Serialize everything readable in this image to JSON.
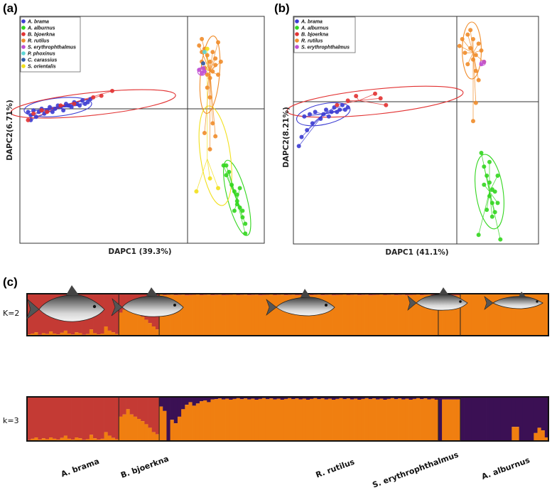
{
  "figure": {
    "panel_labels": [
      "(a)",
      "(b)",
      "(c)"
    ],
    "colors": {
      "A. brama": "#3c3cd2",
      "A. alburnus": "#33d61f",
      "B. bjoerkna": "#e23232",
      "R. rutilus": "#f08c2a",
      "S. erythrophthalmus": "#c04fd3",
      "P. phoxinus": "#5fd6d6",
      "C. carassius": "#2e5aa8",
      "S. orientalis": "#f2e01c",
      "k_dark_red": "#c43a34",
      "k_orange": "#f07f10",
      "k_purple": "#3b1054"
    }
  },
  "chart_data": [
    {
      "panel": "(a)",
      "type": "scatter",
      "xlabel": "DAPC1 (39.3%)",
      "ylabel": "DAPC2(6.71%)",
      "xlim": [
        -5,
        4
      ],
      "ylim": [
        -4,
        3
      ],
      "legend": [
        "A. brama",
        "A. alburnus",
        "B. bjoerkna",
        "R. rutilus",
        "S. erythrophthalmus",
        "P. phoxinus",
        "C. carassius",
        "S. orientalis"
      ],
      "series": [
        {
          "name": "A. brama",
          "points": [
            [
              -4.7,
              0.05
            ],
            [
              -4.6,
              -0.05
            ],
            [
              -4.5,
              0.1
            ],
            [
              -4.4,
              -0.1
            ],
            [
              -4.3,
              0.05
            ],
            [
              -4.2,
              0.15
            ],
            [
              -4.1,
              0.0
            ],
            [
              -4.0,
              0.1
            ],
            [
              -3.9,
              0.2
            ],
            [
              -3.8,
              0.05
            ],
            [
              -3.7,
              0.15
            ],
            [
              -3.6,
              0.25
            ],
            [
              -3.5,
              0.2
            ],
            [
              -3.4,
              0.1
            ],
            [
              -3.3,
              0.3
            ],
            [
              -3.2,
              0.25
            ],
            [
              -3.1,
              0.2
            ],
            [
              -3.0,
              0.35
            ],
            [
              -2.9,
              0.3
            ],
            [
              -2.8,
              0.25
            ],
            [
              -2.7,
              0.4
            ],
            [
              -2.6,
              0.3
            ],
            [
              -2.5,
              0.35
            ],
            [
              -2.4,
              0.45
            ],
            [
              -4.6,
              -0.2
            ]
          ],
          "centroid": [
            -3.5,
            0.2
          ]
        },
        {
          "name": "B. bjoerkna",
          "points": [
            [
              -4.7,
              -0.2
            ],
            [
              -4.5,
              0.0
            ],
            [
              -4.0,
              0.05
            ],
            [
              -3.5,
              0.25
            ],
            [
              -3.0,
              0.3
            ],
            [
              -2.0,
              0.55
            ],
            [
              -1.6,
              0.7
            ],
            [
              -2.3,
              0.5
            ],
            [
              -4.2,
              0.1
            ]
          ],
          "centroid": [
            -3.2,
            0.3
          ]
        },
        {
          "name": "R. rutilus",
          "points": [
            [
              1.6,
              2.1
            ],
            [
              1.7,
              1.9
            ],
            [
              1.8,
              2.0
            ],
            [
              1.9,
              1.8
            ],
            [
              2.0,
              1.6
            ],
            [
              2.1,
              1.9
            ],
            [
              2.2,
              1.7
            ],
            [
              2.3,
              2.2
            ],
            [
              1.8,
              1.4
            ],
            [
              1.9,
              1.2
            ],
            [
              2.0,
              1.1
            ],
            [
              2.1,
              1.3
            ],
            [
              2.2,
              1.5
            ],
            [
              1.7,
              1.6
            ],
            [
              2.3,
              1.2
            ],
            [
              1.9,
              0.8
            ],
            [
              2.0,
              0.5
            ],
            [
              1.8,
              -0.6
            ],
            [
              2.0,
              -1.1
            ],
            [
              2.2,
              -0.7
            ],
            [
              2.1,
              -0.3
            ],
            [
              1.7,
              2.3
            ],
            [
              2.4,
              1.6
            ]
          ],
          "centroid": [
            2.0,
            1.3
          ]
        },
        {
          "name": "A. alburnus",
          "points": [
            [
              2.5,
              -1.6
            ],
            [
              2.6,
              -1.9
            ],
            [
              2.7,
              -1.8
            ],
            [
              2.8,
              -2.2
            ],
            [
              2.9,
              -2.4
            ],
            [
              3.0,
              -2.5
            ],
            [
              3.0,
              -2.7
            ],
            [
              3.1,
              -2.9
            ],
            [
              3.2,
              -3.0
            ],
            [
              3.2,
              -3.2
            ],
            [
              3.3,
              -3.4
            ],
            [
              2.9,
              -3.0
            ],
            [
              3.1,
              -2.3
            ],
            [
              2.6,
              -1.6
            ],
            [
              3.3,
              -3.7
            ],
            [
              3.0,
              -2.8
            ]
          ],
          "centroid": [
            3.0,
            -2.7
          ]
        },
        {
          "name": "S. erythrophthalmus",
          "points": [
            [
              1.6,
              1.35
            ],
            [
              1.7,
              1.25
            ],
            [
              1.8,
              1.3
            ],
            [
              1.75,
              1.4
            ]
          ],
          "centroid": [
            1.7,
            1.3
          ]
        },
        {
          "name": "S. orientalis",
          "points": [
            [
              1.9,
              2.0
            ],
            [
              2.0,
              -2.0
            ],
            [
              1.5,
              -2.4
            ],
            [
              2.3,
              -2.3
            ]
          ],
          "centroid": [
            1.9,
            -1.4
          ]
        },
        {
          "name": "P. phoxinus",
          "points": [
            [
              1.8,
              1.9
            ]
          ],
          "centroid": [
            1.8,
            1.9
          ]
        },
        {
          "name": "C. carassius",
          "points": [
            [
              1.75,
              1.55
            ]
          ],
          "centroid": [
            1.75,
            1.55
          ]
        }
      ]
    },
    {
      "panel": "(b)",
      "type": "scatter",
      "xlabel": "DAPC1 (41.1%)",
      "ylabel": "DAPC2(8.21%)",
      "xlim": [
        -5,
        4
      ],
      "ylim": [
        -6,
        4
      ],
      "legend": [
        "A. brama",
        "A. alburnus",
        "B. bjoerkna",
        "R. rutilus",
        "S. erythrophthalmus"
      ],
      "series": [
        {
          "name": "A. brama",
          "points": [
            [
              -4.6,
              -0.4
            ],
            [
              -4.4,
              -0.3
            ],
            [
              -4.2,
              -0.2
            ],
            [
              -4.0,
              -0.5
            ],
            [
              -3.9,
              -0.3
            ],
            [
              -3.8,
              -0.1
            ],
            [
              -3.7,
              -0.4
            ],
            [
              -3.6,
              -0.2
            ],
            [
              -3.5,
              0.0
            ],
            [
              -3.4,
              -0.2
            ],
            [
              -3.3,
              -0.1
            ],
            [
              -3.2,
              0.1
            ],
            [
              -3.1,
              -0.1
            ],
            [
              -3.0,
              0.0
            ],
            [
              -4.7,
              -1.3
            ],
            [
              -4.5,
              -1.0
            ],
            [
              -4.3,
              -0.7
            ],
            [
              -4.8,
              -1.7
            ]
          ],
          "centroid": [
            -3.9,
            -0.3
          ]
        },
        {
          "name": "B. bjoerkna",
          "points": [
            [
              -3.0,
              0.3
            ],
            [
              -2.7,
              0.5
            ],
            [
              -1.8,
              0.4
            ],
            [
              -1.6,
              0.1
            ],
            [
              -2.0,
              0.6
            ],
            [
              -3.4,
              0.1
            ]
          ],
          "centroid": [
            -2.6,
            0.3
          ]
        },
        {
          "name": "R. rutilus",
          "points": [
            [
              1.2,
              3.0
            ],
            [
              1.4,
              3.2
            ],
            [
              1.6,
              3.0
            ],
            [
              1.8,
              2.8
            ],
            [
              1.5,
              2.6
            ],
            [
              1.3,
              2.4
            ],
            [
              1.7,
              2.3
            ],
            [
              1.9,
              2.5
            ],
            [
              1.6,
              2.1
            ],
            [
              1.4,
              1.9
            ],
            [
              1.7,
              1.6
            ],
            [
              1.8,
              1.2
            ],
            [
              1.5,
              3.4
            ],
            [
              2.0,
              2.0
            ],
            [
              1.1,
              2.7
            ],
            [
              1.7,
              0.2
            ],
            [
              1.6,
              -0.6
            ]
          ],
          "centroid": [
            1.6,
            2.4
          ]
        },
        {
          "name": "A. alburnus",
          "points": [
            [
              1.9,
              -2.0
            ],
            [
              2.0,
              -2.6
            ],
            [
              2.1,
              -3.0
            ],
            [
              2.2,
              -3.3
            ],
            [
              2.3,
              -3.6
            ],
            [
              2.2,
              -3.9
            ],
            [
              2.3,
              -4.2
            ],
            [
              2.4,
              -3.7
            ],
            [
              2.1,
              -4.5
            ],
            [
              2.5,
              -4.2
            ],
            [
              2.3,
              -4.8
            ],
            [
              2.0,
              -3.4
            ],
            [
              2.5,
              -3.0
            ],
            [
              2.2,
              -2.4
            ],
            [
              1.8,
              -5.6
            ],
            [
              2.6,
              -5.8
            ],
            [
              2.4,
              -4.6
            ]
          ],
          "centroid": [
            2.2,
            -3.7
          ]
        },
        {
          "name": "S. erythrophthalmus",
          "points": [
            [
              1.9,
              1.9
            ],
            [
              2.0,
              2.0
            ]
          ],
          "centroid": [
            1.95,
            1.95
          ]
        }
      ]
    },
    {
      "panel": "(c)",
      "type": "bar",
      "stacked": true,
      "rows": [
        {
          "label": "K=2",
          "clusters": [
            "k_dark_red",
            "k_orange"
          ]
        },
        {
          "label": "k=3",
          "clusters": [
            "k_dark_red",
            "k_orange",
            "k_purple"
          ]
        }
      ],
      "groups": [
        "A. brama",
        "B. bjoerkna",
        "R. rutilus",
        "S. erythrophthalmus",
        "A. alburnus"
      ],
      "group_sizes": [
        25,
        11,
        76,
        6,
        24
      ],
      "k2_minor_fraction": {
        "A. brama": [
          0.03,
          0.05,
          0.08,
          0.02,
          0.06,
          0.04,
          0.1,
          0.05,
          0.03,
          0.07,
          0.12,
          0.05,
          0.03,
          0.08,
          0.06,
          0.02,
          0.04,
          0.15,
          0.06,
          0.03,
          0.05,
          0.22,
          0.12,
          0.08,
          0.04
        ],
        "B. bjoerkna": [
          0.55,
          0.62,
          0.72,
          0.66,
          0.58,
          0.5,
          0.45,
          0.38,
          0.3,
          0.22,
          0.15
        ],
        "R. rutilus_dark_top": 0.03,
        "S. erythrophthalmus_dark_top": 0.04,
        "A. alburnus_dark_top": 0.01
      },
      "k3": {
        "A. brama_orange": [
          0.02,
          0.05,
          0.08,
          0.03,
          0.06,
          0.04,
          0.08,
          0.05,
          0.03,
          0.07,
          0.12,
          0.05,
          0.03,
          0.08,
          0.06,
          0.02,
          0.04,
          0.14,
          0.06,
          0.03,
          0.05,
          0.2,
          0.12,
          0.07,
          0.04
        ],
        "B. bjoerkna_orange": [
          0.55,
          0.6,
          0.72,
          0.6,
          0.55,
          0.5,
          0.45,
          0.38,
          0.3,
          0.2,
          0.15
        ],
        "R. rutilus_purple_top": [
          0.22,
          0.32,
          0.08,
          0.52,
          0.6,
          0.45,
          0.28,
          0.18,
          0.12,
          0.2,
          0.15,
          0.1,
          0.08,
          0.12,
          0.06,
          0.05
        ],
        "A. alburnus_orange": [
          0.0,
          0.0,
          0.0,
          0.0,
          0.0,
          0.0,
          0.0,
          0.0,
          0.0,
          0.0,
          0.0,
          0.0,
          0.0,
          0.0,
          0.32,
          0.32,
          0.0,
          0.0,
          0.0,
          0.0,
          0.18,
          0.3,
          0.24,
          0.08
        ]
      }
    }
  ]
}
